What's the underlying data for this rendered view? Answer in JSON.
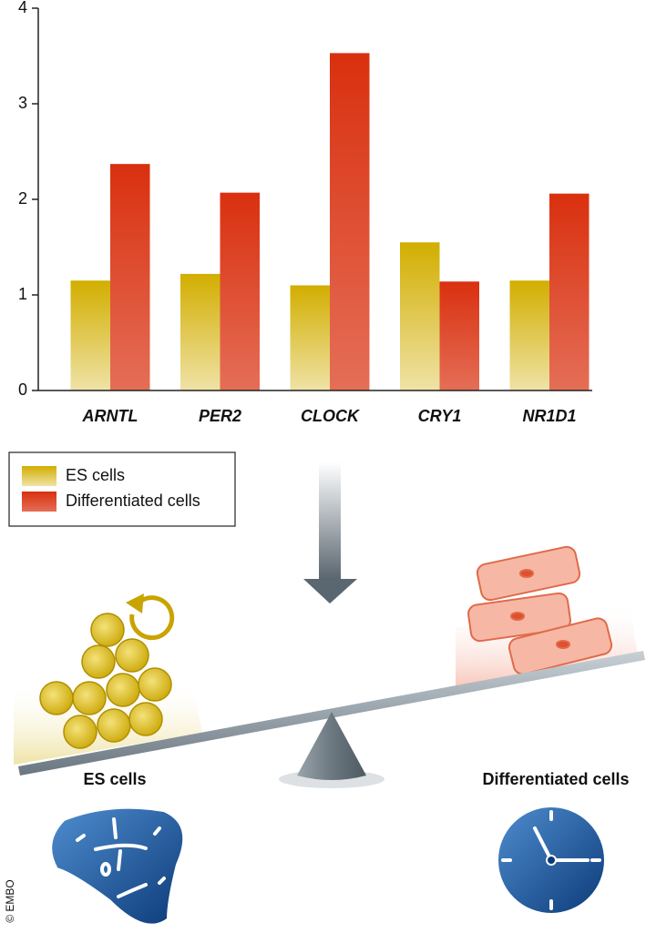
{
  "chart_data": {
    "type": "bar",
    "categories": [
      "ARNTL",
      "PER2",
      "CLOCK",
      "CRY1",
      "NR1D1"
    ],
    "series": [
      {
        "name": "ES cells",
        "color": "#d2ae00",
        "values": [
          1.15,
          1.22,
          1.1,
          1.55,
          1.15
        ]
      },
      {
        "name": "Differentiated cells",
        "color": "#d9300f",
        "values": [
          2.37,
          2.07,
          3.53,
          1.14,
          2.06
        ]
      }
    ],
    "ylim": [
      0,
      4
    ],
    "yticks": [
      0,
      1,
      2,
      3,
      4
    ]
  },
  "illustration": {
    "left_label": "ES cells",
    "right_label": "Differentiated cells",
    "copyright": "© EMBO"
  }
}
